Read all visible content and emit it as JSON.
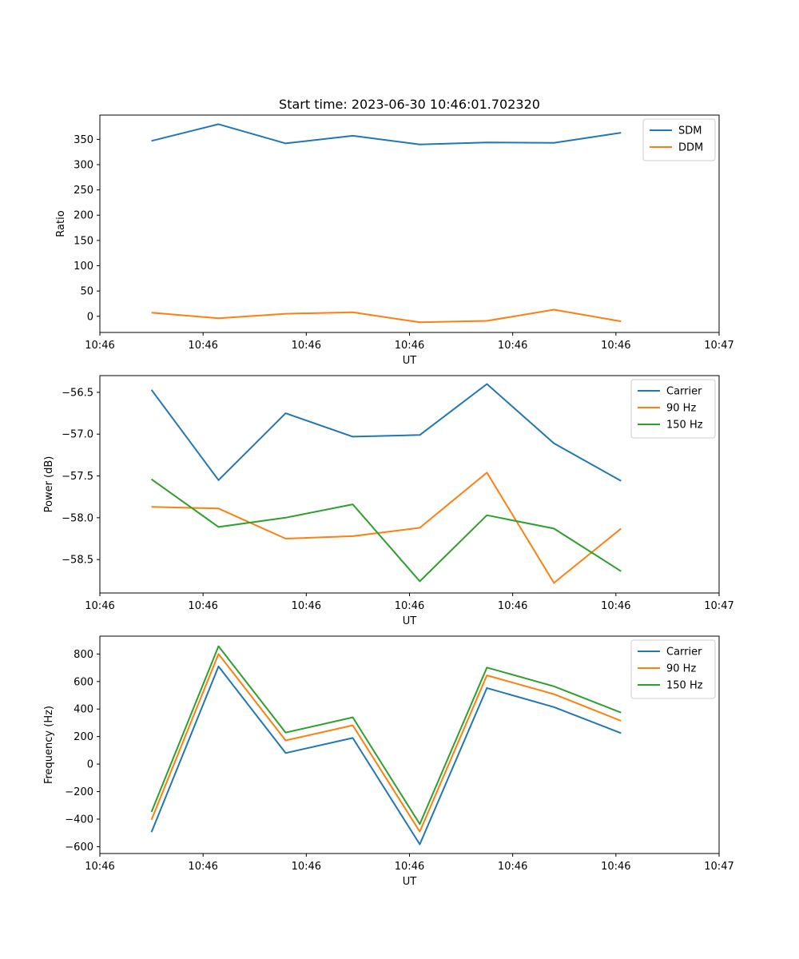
{
  "figure": {
    "title": "Start time: 2023-06-30 10:46:01.702320"
  },
  "chart_data": [
    {
      "type": "line",
      "title": "Start time: 2023-06-30 10:46:01.702320",
      "xlabel": "UT",
      "ylabel": "Ratio",
      "x_tick_labels": [
        "10:46",
        "10:46",
        "10:46",
        "10:46",
        "10:46",
        "10:46",
        "10:47"
      ],
      "xlim": [
        0,
        6
      ],
      "x": [
        0.5,
        1.15,
        1.8,
        2.45,
        3.1,
        3.75,
        4.4,
        5.05
      ],
      "ylim": [
        -32,
        398
      ],
      "yticks": [
        0,
        50,
        100,
        150,
        200,
        250,
        300,
        350
      ],
      "legend_position": "upper right",
      "grid": false,
      "series": [
        {
          "name": "SDM",
          "color": "#1f77b4",
          "values": [
            347,
            380,
            342,
            357,
            340,
            344,
            343,
            363
          ]
        },
        {
          "name": "DDM",
          "color": "#ff7f0e",
          "values": [
            7,
            -4,
            5,
            8,
            -12,
            -9,
            13,
            -10
          ]
        }
      ]
    },
    {
      "type": "line",
      "xlabel": "UT",
      "ylabel": "Power (dB)",
      "x_tick_labels": [
        "10:46",
        "10:46",
        "10:46",
        "10:46",
        "10:46",
        "10:46",
        "10:47"
      ],
      "xlim": [
        0,
        6
      ],
      "x": [
        0.5,
        1.15,
        1.8,
        2.45,
        3.1,
        3.75,
        4.4,
        5.05
      ],
      "ylim": [
        -58.9,
        -56.3
      ],
      "yticks": [
        -58.5,
        -58.0,
        -57.5,
        -57.0,
        -56.5
      ],
      "ytick_labels": [
        "−58.5",
        "−58.0",
        "−57.5",
        "−57.0",
        "−56.5"
      ],
      "legend_position": "upper right",
      "grid": false,
      "series": [
        {
          "name": "Carrier",
          "color": "#1f77b4",
          "values": [
            -56.47,
            -57.55,
            -56.75,
            -57.03,
            -57.01,
            -56.4,
            -57.11,
            -57.56
          ]
        },
        {
          "name": "90 Hz",
          "color": "#ff7f0e",
          "values": [
            -57.87,
            -57.89,
            -58.25,
            -58.22,
            -58.12,
            -57.46,
            -58.78,
            -58.13
          ]
        },
        {
          "name": "150 Hz",
          "color": "#2ca02c",
          "values": [
            -57.54,
            -58.11,
            -58.0,
            -57.84,
            -58.76,
            -57.97,
            -58.13,
            -58.64
          ]
        }
      ]
    },
    {
      "type": "line",
      "xlabel": "UT",
      "ylabel": "Frequency (Hz)",
      "x_tick_labels": [
        "10:46",
        "10:46",
        "10:46",
        "10:46",
        "10:46",
        "10:46",
        "10:47"
      ],
      "xlim": [
        0,
        6
      ],
      "x": [
        0.5,
        1.15,
        1.8,
        2.45,
        3.1,
        3.75,
        4.4,
        5.05
      ],
      "ylim": [
        -650,
        930
      ],
      "yticks": [
        -600,
        -400,
        -200,
        0,
        200,
        400,
        600,
        800
      ],
      "ytick_labels": [
        "−600",
        "−400",
        "−200",
        "0",
        "200",
        "400",
        "600",
        "800"
      ],
      "legend_position": "upper right",
      "grid": false,
      "series": [
        {
          "name": "Carrier",
          "color": "#1f77b4",
          "values": [
            -495,
            710,
            80,
            190,
            -583,
            553,
            414,
            225
          ]
        },
        {
          "name": "90 Hz",
          "color": "#ff7f0e",
          "values": [
            -405,
            800,
            172,
            282,
            -491,
            645,
            508,
            314
          ]
        },
        {
          "name": "150 Hz",
          "color": "#2ca02c",
          "values": [
            -348,
            857,
            229,
            340,
            -436,
            702,
            565,
            374
          ]
        }
      ]
    }
  ]
}
